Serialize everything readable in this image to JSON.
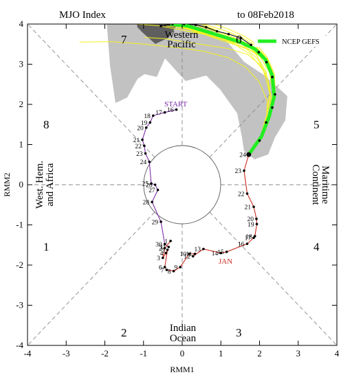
{
  "chart_data": {
    "type": "line",
    "title": "MJO Index",
    "title_right": "to 08Feb2018",
    "xlabel": "RMM1",
    "ylabel": "RMM2",
    "xlim": [
      -4,
      4
    ],
    "ylim": [
      -4,
      4
    ],
    "x_ticks": [
      "-4",
      "-3",
      "-2",
      "-1",
      "0",
      "1",
      "2",
      "3",
      "4"
    ],
    "y_ticks": [
      "-4",
      "-3",
      "-2",
      "-1",
      "0",
      "1",
      "2",
      "3",
      "4"
    ],
    "grid": false,
    "phase_labels": [
      "1",
      "2",
      "3",
      "4",
      "5",
      "6",
      "7",
      "8"
    ],
    "regions": [
      {
        "name": "top",
        "lines": [
          "Western",
          "Pacific"
        ]
      },
      {
        "name": "bottom",
        "lines": [
          "Indian",
          "Ocean"
        ]
      },
      {
        "name": "left",
        "lines": [
          "West. Hem.",
          "and Africa"
        ]
      },
      {
        "name": "right",
        "lines": [
          "Maritime",
          "Continent"
        ]
      }
    ],
    "start_label": "START",
    "month_label": "JAN",
    "legend": {
      "name": "NCEP GEFS",
      "color": "#22ee22",
      "position": "top-right"
    },
    "colors": {
      "dec": "#7b2da8",
      "jan": "#cc2a1f",
      "feb": "#000000",
      "ensemble": "#f2f21e",
      "spread_dark": "#5f5f5f",
      "spread_light": "#c2c2c2",
      "mean": "#22ee22"
    },
    "series": [
      {
        "label": "purple",
        "points": [
          {
            "d": "16",
            "x": -0.15,
            "y": 1.87
          },
          {
            "d": "17",
            "x": -0.45,
            "y": 1.8
          },
          {
            "d": "18",
            "x": -0.75,
            "y": 1.72
          },
          {
            "d": "19",
            "x": -0.83,
            "y": 1.55
          },
          {
            "d": "20",
            "x": -0.93,
            "y": 1.42
          },
          {
            "d": "21",
            "x": -1.03,
            "y": 1.12
          },
          {
            "d": "22",
            "x": -0.98,
            "y": 0.97
          },
          {
            "d": "23",
            "x": -0.95,
            "y": 0.78
          },
          {
            "d": "24",
            "x": -0.85,
            "y": 0.57
          },
          {
            "d": "25",
            "x": -0.8,
            "y": 0.03
          },
          {
            "d": "26",
            "x": -0.7,
            "y": 0.0
          },
          {
            "d": "27",
            "x": -0.63,
            "y": -0.13
          },
          {
            "d": "28",
            "x": -0.78,
            "y": -0.43
          },
          {
            "d": "29",
            "x": -0.55,
            "y": -0.92
          },
          {
            "d": "30",
            "x": -0.45,
            "y": -1.48
          },
          {
            "d": "31",
            "x": -0.35,
            "y": -1.55
          }
        ]
      },
      {
        "label": "red",
        "points": [
          {
            "d": "1",
            "x": -0.3,
            "y": -1.4
          },
          {
            "d": "2",
            "x": -0.45,
            "y": -1.58
          },
          {
            "d": "3",
            "x": -0.5,
            "y": -1.82
          },
          {
            "d": "4",
            "x": -0.42,
            "y": -1.7
          },
          {
            "d": "5",
            "x": -0.38,
            "y": -1.62
          },
          {
            "d": "6",
            "x": -0.45,
            "y": -2.05
          },
          {
            "d": "7",
            "x": -0.4,
            "y": -2.12
          },
          {
            "d": "8",
            "x": -0.22,
            "y": -2.15
          },
          {
            "d": "9",
            "x": -0.05,
            "y": -2.05
          },
          {
            "d": "10",
            "x": 0.18,
            "y": -1.72
          },
          {
            "d": "11",
            "x": 0.33,
            "y": -1.72
          },
          {
            "d": "12",
            "x": 0.28,
            "y": -1.78
          },
          {
            "d": "13",
            "x": 0.55,
            "y": -1.6
          },
          {
            "d": "14",
            "x": 1.0,
            "y": -1.7
          },
          {
            "d": "15",
            "x": 1.15,
            "y": -1.67
          },
          {
            "d": "16",
            "x": 1.68,
            "y": -1.47
          },
          {
            "d": "17",
            "x": 1.85,
            "y": -1.32
          },
          {
            "d": "18",
            "x": 1.88,
            "y": -1.28
          },
          {
            "d": "19",
            "x": 1.93,
            "y": -0.98
          },
          {
            "d": "20",
            "x": 1.92,
            "y": -0.85
          },
          {
            "d": "21",
            "x": 1.85,
            "y": -0.55
          },
          {
            "d": "22",
            "x": 1.68,
            "y": -0.22
          },
          {
            "d": "23",
            "x": 1.6,
            "y": 0.35
          },
          {
            "d": "24",
            "x": 1.72,
            "y": 0.75
          }
        ]
      },
      {
        "label": "black",
        "points": [
          {
            "d": "",
            "x": 1.72,
            "y": 0.75
          },
          {
            "d": "",
            "x": 2.0,
            "y": 1.1
          },
          {
            "d": "",
            "x": 2.17,
            "y": 1.55
          },
          {
            "d": "",
            "x": 2.33,
            "y": 1.92
          },
          {
            "d": "",
            "x": 2.4,
            "y": 2.25
          },
          {
            "d": "",
            "x": 2.33,
            "y": 2.68
          },
          {
            "d": "",
            "x": 2.18,
            "y": 3.05
          },
          {
            "d": "",
            "x": 1.98,
            "y": 3.3
          },
          {
            "d": "",
            "x": 1.78,
            "y": 3.48
          },
          {
            "d": "",
            "x": 1.52,
            "y": 3.65
          },
          {
            "d": "",
            "x": 1.2,
            "y": 3.75
          },
          {
            "d": "",
            "x": 0.9,
            "y": 3.82
          },
          {
            "d": "",
            "x": 0.62,
            "y": 3.92
          },
          {
            "d": "",
            "x": 0.35,
            "y": 3.98
          },
          {
            "d": "",
            "x": 0.05,
            "y": 4.0
          },
          {
            "d": "",
            "x": -0.25,
            "y": 4.0
          },
          {
            "d": "",
            "x": -0.55,
            "y": 3.95
          }
        ]
      },
      {
        "label": "NCEP GEFS",
        "points": [
          {
            "x": 1.72,
            "y": 0.75
          },
          {
            "x": 2.05,
            "y": 1.2
          },
          {
            "x": 2.25,
            "y": 1.7
          },
          {
            "x": 2.38,
            "y": 2.2
          },
          {
            "x": 2.33,
            "y": 2.72
          },
          {
            "x": 2.15,
            "y": 3.12
          },
          {
            "x": 1.88,
            "y": 3.38
          },
          {
            "x": 1.5,
            "y": 3.55
          },
          {
            "x": 1.08,
            "y": 3.68
          },
          {
            "x": 0.6,
            "y": 3.82
          },
          {
            "x": 0.15,
            "y": 3.95
          },
          {
            "x": -0.3,
            "y": 4.0
          }
        ]
      }
    ]
  }
}
